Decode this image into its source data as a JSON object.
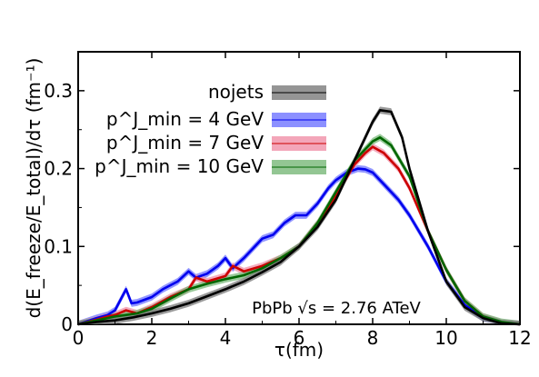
{
  "chart_data": {
    "type": "line",
    "xlabel": "τ(fm)",
    "ylabel": "d(E_freeze/E_total)/dτ (fm⁻¹)",
    "xlim": [
      0,
      12
    ],
    "ylim": [
      0,
      0.35
    ],
    "x_ticks": [
      "0",
      "2",
      "4",
      "6",
      "8",
      "10",
      "12"
    ],
    "y_ticks": [
      "0",
      "0.1",
      "0.2",
      "0.3"
    ],
    "grid": false,
    "legend_position": "top-center",
    "annotation": "PbPb √s = 2.76 ATeV",
    "series": [
      {
        "name": "nojets",
        "color": "#000000",
        "band_color": "#7a7a7a",
        "x": [
          0,
          0.5,
          1,
          1.5,
          2,
          2.5,
          3,
          3.5,
          4,
          4.5,
          5,
          5.5,
          6,
          6.5,
          7,
          7.5,
          8,
          8.2,
          8.5,
          8.8,
          9,
          9.5,
          10,
          10.5,
          11,
          11.5,
          12
        ],
        "y": [
          0,
          0.003,
          0.005,
          0.009,
          0.014,
          0.02,
          0.027,
          0.036,
          0.045,
          0.055,
          0.067,
          0.08,
          0.1,
          0.125,
          0.16,
          0.21,
          0.26,
          0.275,
          0.273,
          0.24,
          0.2,
          0.12,
          0.055,
          0.022,
          0.008,
          0.001,
          0
        ]
      },
      {
        "name": "p^J_min = 4 GeV",
        "color": "#0000ee",
        "band_color": "#6f74ff",
        "x": [
          0,
          0.5,
          0.8,
          1,
          1.3,
          1.45,
          1.6,
          2,
          2.3,
          2.7,
          3,
          3.2,
          3.5,
          3.8,
          4,
          4.2,
          4.5,
          4.8,
          5,
          5.3,
          5.6,
          5.9,
          6.2,
          6.5,
          6.8,
          7,
          7.3,
          7.6,
          7.8,
          8,
          8.3,
          8.7,
          9,
          9.5,
          10,
          10.5,
          11,
          11.5,
          12
        ],
        "y": [
          0,
          0.008,
          0.012,
          0.018,
          0.045,
          0.027,
          0.028,
          0.035,
          0.045,
          0.055,
          0.068,
          0.06,
          0.065,
          0.075,
          0.085,
          0.072,
          0.085,
          0.1,
          0.11,
          0.115,
          0.13,
          0.14,
          0.14,
          0.155,
          0.175,
          0.185,
          0.195,
          0.2,
          0.199,
          0.195,
          0.18,
          0.16,
          0.14,
          0.1,
          0.055,
          0.025,
          0.008,
          0.002,
          0
        ]
      },
      {
        "name": "p^J_min = 7 GeV",
        "color": "#cc0000",
        "band_color": "#f090a8",
        "x": [
          0,
          0.5,
          0.8,
          1,
          1.3,
          1.6,
          2,
          2.5,
          3,
          3.2,
          3.5,
          4,
          4.2,
          4.5,
          5,
          5.5,
          6,
          6.5,
          7,
          7.5,
          7.8,
          8,
          8.3,
          8.7,
          9,
          9.5,
          10,
          10.5,
          11,
          11.5,
          12
        ],
        "y": [
          0,
          0.006,
          0.01,
          0.012,
          0.018,
          0.014,
          0.022,
          0.035,
          0.045,
          0.06,
          0.055,
          0.062,
          0.075,
          0.068,
          0.075,
          0.085,
          0.1,
          0.13,
          0.165,
          0.205,
          0.22,
          0.228,
          0.22,
          0.2,
          0.175,
          0.12,
          0.07,
          0.03,
          0.01,
          0.002,
          0
        ]
      },
      {
        "name": "p^J_min = 10 GeV",
        "color": "#006600",
        "band_color": "#78b878",
        "x": [
          0,
          0.5,
          0.8,
          1,
          1.3,
          1.6,
          2,
          2.5,
          3,
          3.5,
          4,
          4.5,
          5,
          5.5,
          6,
          6.5,
          7,
          7.5,
          8,
          8.2,
          8.5,
          9,
          9.5,
          10,
          10.5,
          11,
          11.5,
          12
        ],
        "y": [
          0,
          0.005,
          0.008,
          0.01,
          0.012,
          0.014,
          0.02,
          0.033,
          0.045,
          0.052,
          0.058,
          0.063,
          0.072,
          0.085,
          0.1,
          0.13,
          0.17,
          0.21,
          0.235,
          0.24,
          0.23,
          0.19,
          0.12,
          0.07,
          0.03,
          0.01,
          0.003,
          0
        ]
      }
    ]
  }
}
